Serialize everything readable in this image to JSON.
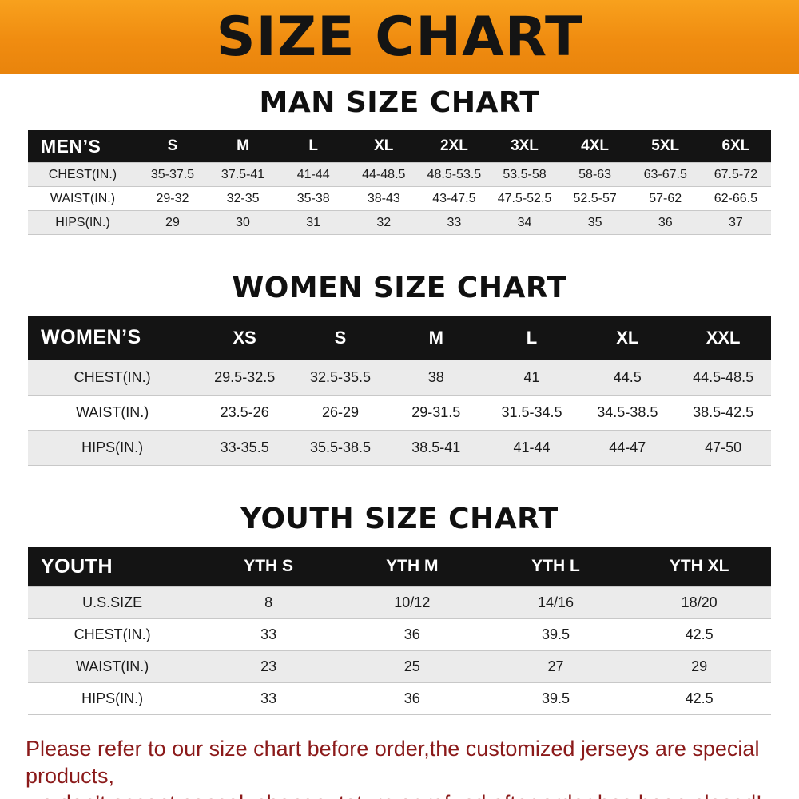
{
  "banner": {
    "title": "SIZE CHART",
    "background_orange": "#f08c10",
    "text_color": "#141414"
  },
  "chart_data": [
    {
      "type": "table",
      "title": "MAN SIZE CHART",
      "columns": [
        "MEN’S",
        "S",
        "M",
        "L",
        "XL",
        "2XL",
        "3XL",
        "4XL",
        "5XL",
        "6XL"
      ],
      "rows": [
        [
          "CHEST(IN.)",
          "35-37.5",
          "37.5-41",
          "41-44",
          "44-48.5",
          "48.5-53.5",
          "53.5-58",
          "58-63",
          "63-67.5",
          "67.5-72"
        ],
        [
          "WAIST(IN.)",
          "29-32",
          "32-35",
          "35-38",
          "38-43",
          "43-47.5",
          "47.5-52.5",
          "52.5-57",
          "57-62",
          "62-66.5"
        ],
        [
          "HIPS(IN.)",
          "29",
          "30",
          "31",
          "32",
          "33",
          "34",
          "35",
          "36",
          "37"
        ]
      ]
    },
    {
      "type": "table",
      "title": "WOMEN SIZE CHART",
      "columns": [
        "WOMEN’S",
        "XS",
        "S",
        "M",
        "L",
        "XL",
        "XXL"
      ],
      "rows": [
        [
          "CHEST(IN.)",
          "29.5-32.5",
          "32.5-35.5",
          "38",
          "41",
          "44.5",
          "44.5-48.5"
        ],
        [
          "WAIST(IN.)",
          "23.5-26",
          "26-29",
          "29-31.5",
          "31.5-34.5",
          "34.5-38.5",
          "38.5-42.5"
        ],
        [
          "HIPS(IN.)",
          "33-35.5",
          "35.5-38.5",
          "38.5-41",
          "41-44",
          "44-47",
          "47-50"
        ]
      ]
    },
    {
      "type": "table",
      "title": "YOUTH SIZE CHART",
      "columns": [
        "YOUTH",
        "YTH S",
        "YTH M",
        "YTH L",
        "YTH XL"
      ],
      "rows": [
        [
          "U.S.SIZE",
          "8",
          "10/12",
          "14/16",
          "18/20"
        ],
        [
          "CHEST(IN.)",
          "33",
          "36",
          "39.5",
          "42.5"
        ],
        [
          "WAIST(IN.)",
          "23",
          "25",
          "27",
          "29"
        ],
        [
          "HIPS(IN.)",
          "33",
          "36",
          "39.5",
          "42.5"
        ]
      ]
    }
  ],
  "footer": {
    "line1": "Please refer to our size chart before order,the customized jerseys are special products,",
    "line2": "we don’t accept cancel, change, teturn or refund after order has been placed!",
    "text_color": "#8b1a1a"
  },
  "colors": {
    "header_row_black": "#141414",
    "stripe_gray": "#ebebeb",
    "row_line_gray": "#c8c8c8"
  }
}
